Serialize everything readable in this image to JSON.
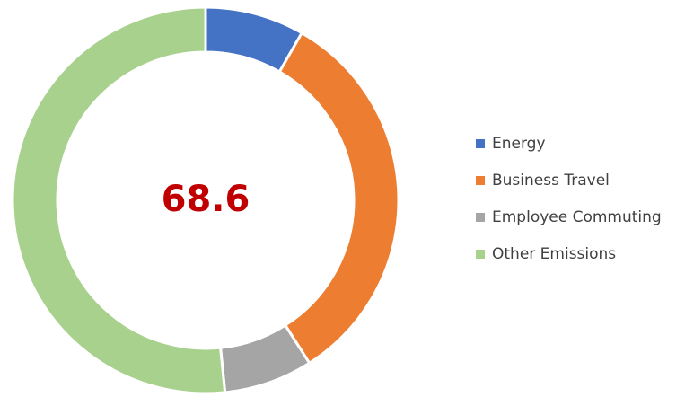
{
  "chart_data": {
    "type": "donut",
    "categories": [
      "Energy",
      "Business Travel",
      "Employee Commuting",
      "Other Emissions"
    ],
    "values": [
      5.7,
      22.4,
      5.1,
      35.4
    ],
    "colors": [
      "#4472c4",
      "#ed7d31",
      "#a5a5a5",
      "#a9d18e"
    ],
    "center_value": 68.6,
    "center_color": "#c00000",
    "legend": "right"
  }
}
